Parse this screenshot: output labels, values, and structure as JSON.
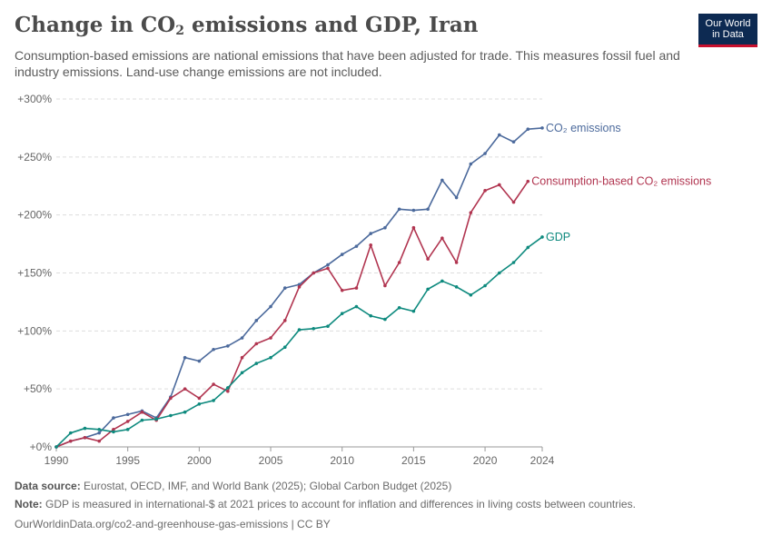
{
  "header": {
    "title_main": "Change in CO",
    "title_sub": "2",
    "title_rest": " emissions and GDP, Iran",
    "subtitle": "Consumption-based emissions are national emissions that have been adjusted for trade. This measures fossil fuel and industry emissions. Land-use change emissions are not included."
  },
  "logo": {
    "line1": "Our World",
    "line2": "in Data"
  },
  "footer": {
    "source_label": "Data source:",
    "source_text": " Eurostat, OECD, IMF, and World Bank (2025); Global Carbon Budget (2025)",
    "note_label": "Note:",
    "note_text": " GDP is measured in international-$ at 2021 prices to account for inflation and differences in living costs between countries.",
    "url_text": "OurWorldinData.org/co2-and-greenhouse-gas-emissions | CC BY"
  },
  "chart_data": {
    "type": "line",
    "x": [
      1990,
      1991,
      1992,
      1993,
      1994,
      1995,
      1996,
      1997,
      1998,
      1999,
      2000,
      2001,
      2002,
      2003,
      2004,
      2005,
      2006,
      2007,
      2008,
      2009,
      2010,
      2011,
      2012,
      2013,
      2014,
      2015,
      2016,
      2017,
      2018,
      2019,
      2020,
      2021,
      2022,
      2023,
      2024
    ],
    "xlim": [
      1990,
      2024
    ],
    "ylim": [
      0,
      300
    ],
    "yticks": [
      0,
      50,
      100,
      150,
      200,
      250,
      300
    ],
    "ytick_labels": [
      "+0%",
      "+50%",
      "+100%",
      "+150%",
      "+200%",
      "+250%",
      "+300%"
    ],
    "xticks": [
      1990,
      1995,
      2000,
      2005,
      2010,
      2015,
      2020,
      2024
    ],
    "xtick_labels": [
      "1990",
      "1995",
      "2000",
      "2005",
      "2010",
      "2015",
      "2020",
      "2024"
    ],
    "grid": true,
    "legend": "inline-right",
    "series": [
      {
        "name": "CO₂ emissions",
        "color": "#4c6a9c",
        "values": [
          0,
          5,
          8,
          12,
          25,
          28,
          31,
          25,
          43,
          77,
          74,
          84,
          87,
          94,
          109,
          121,
          137,
          140,
          150,
          157,
          166,
          173,
          184,
          189,
          205,
          204,
          205,
          230,
          215,
          244,
          253,
          269,
          263,
          274,
          275
        ]
      },
      {
        "name": "Consumption-based CO₂ emissions",
        "color": "#b13550",
        "values": [
          0,
          5,
          8,
          5,
          15,
          22,
          30,
          23,
          42,
          50,
          42,
          54,
          48,
          77,
          89,
          94,
          109,
          138,
          150,
          154,
          135,
          137,
          174,
          139,
          159,
          189,
          162,
          180,
          159,
          202,
          221,
          226,
          211,
          229,
          null
        ]
      },
      {
        "name": "GDP",
        "color": "#0e8a7e",
        "values": [
          0,
          12,
          16,
          15,
          13,
          15,
          23,
          24,
          27,
          30,
          37,
          40,
          51,
          64,
          72,
          77,
          86,
          101,
          102,
          104,
          115,
          121,
          113,
          110,
          120,
          117,
          136,
          143,
          138,
          131,
          139,
          150,
          159,
          172,
          181
        ]
      }
    ]
  }
}
